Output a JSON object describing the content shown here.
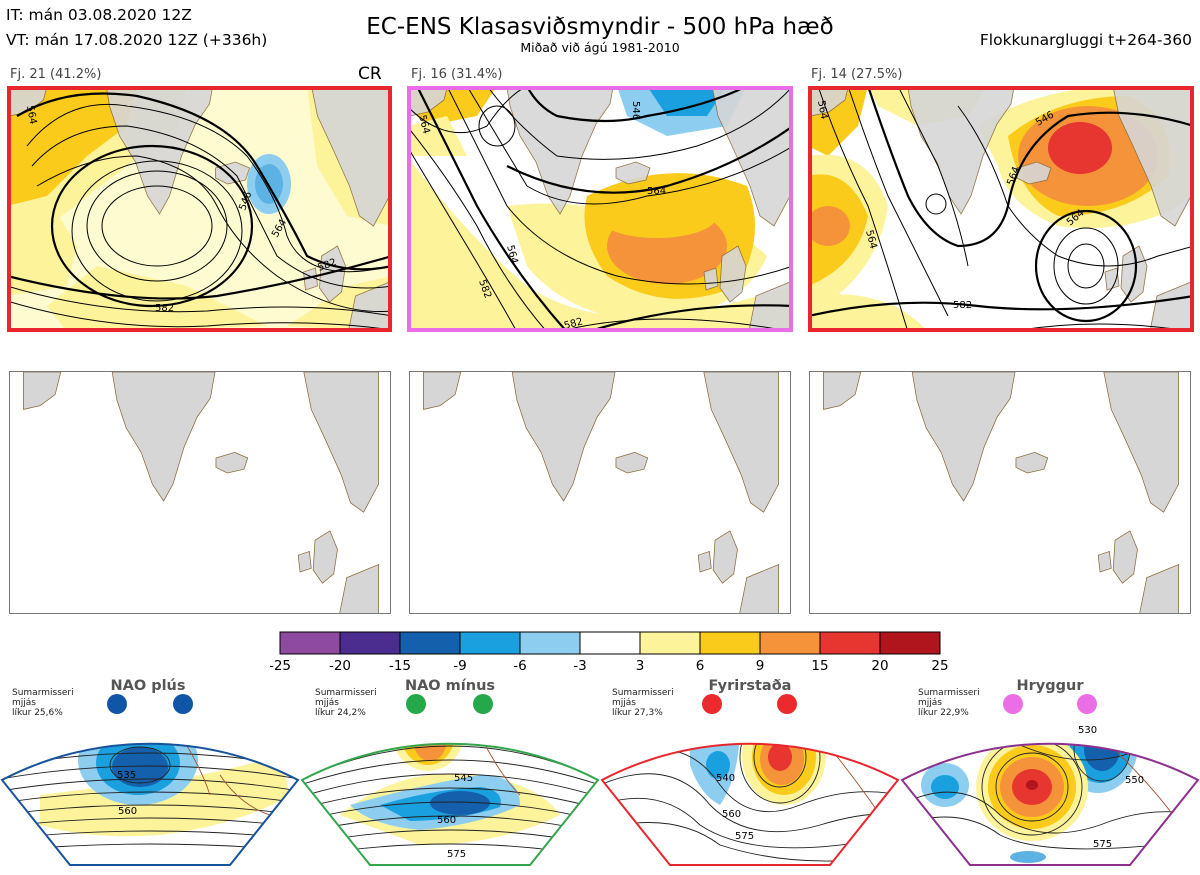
{
  "header": {
    "it_line": "IT: mán 03.08.2020 12Z",
    "vt_line": "VT: mán 17.08.2020 12Z  (+336h)",
    "title": "EC-ENS Klasasviðsmyndir - 500 hPa hæð",
    "subtitle": "Miðað við ágú 1981-2010",
    "window": "Flokkunargluggi t+264-360"
  },
  "panels": [
    {
      "label": "Fj. 21 (41.2%)",
      "tag": "CR",
      "border_color": "#e8262d",
      "contour_labels": [
        "564",
        "546",
        "564",
        "582",
        "582"
      ]
    },
    {
      "label": "Fj. 16 (31.4%)",
      "tag": "",
      "border_color": "#e96de6",
      "contour_labels": [
        "564",
        "546",
        "564",
        "564",
        "582",
        "582"
      ]
    },
    {
      "label": "Fj. 14 (27.5%)",
      "tag": "",
      "border_color": "#e8262d",
      "contour_labels": [
        "564",
        "546",
        "564",
        "564",
        "564",
        "582"
      ]
    }
  ],
  "colorbar": {
    "ticks": [
      "-25",
      "-20",
      "-15",
      "-9",
      "-6",
      "-3",
      "3",
      "6",
      "9",
      "15",
      "20",
      "25"
    ],
    "colors": [
      "#8e4a9e",
      "#4b2d8f",
      "#1560ad",
      "#1aa0df",
      "#8ccdf0",
      "#ffffff",
      "#fdf39a",
      "#fbcb1b",
      "#f5933a",
      "#e7352f",
      "#b0141c"
    ]
  },
  "regimes": [
    {
      "name": "NAO plús",
      "note": [
        "Sumarmisseri",
        "mjjás",
        "líkur 25,6%"
      ],
      "frame_color": "#17539b",
      "dot_color": "#1055a6",
      "contour_labels": [
        "535",
        "560"
      ]
    },
    {
      "name": "NAO mínus",
      "note": [
        "Sumarmisseri",
        "mjjás",
        "líkur 24,2%"
      ],
      "frame_color": "#33a64b",
      "dot_color": "#25a84a",
      "contour_labels": [
        "545",
        "560",
        "575"
      ]
    },
    {
      "name": "Fyrirstaða",
      "note": [
        "Sumarmisseri",
        "mjjás",
        "líkur 27,3%"
      ],
      "frame_color": "#e8262d",
      "dot_color": "#ea2a2c",
      "contour_labels": [
        "540",
        "560",
        "575"
      ]
    },
    {
      "name": "Hryggur",
      "note": [
        "Sumarmisseri",
        "mjjás",
        "líkur 22,9%"
      ],
      "frame_color": "#8c2f8e",
      "dot_color": "#eb6ee7",
      "contour_labels": [
        "530",
        "550",
        "575"
      ]
    }
  ]
}
